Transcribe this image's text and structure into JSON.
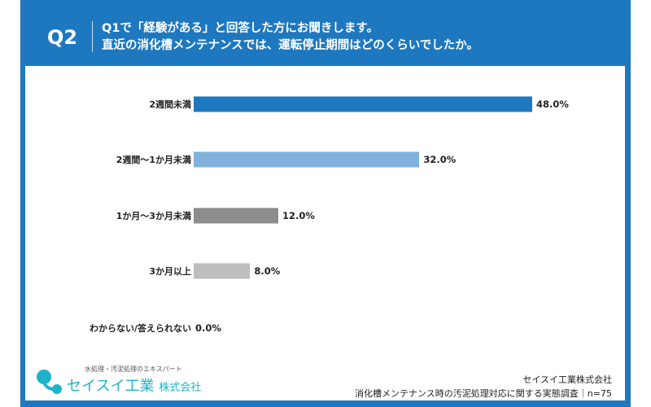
{
  "header": {
    "qnum": "Q2",
    "question_line1": "Q1で「経験がある」と回答した方にお聞きします。",
    "question_line2": "直近の消化槽メンテナンスでは、運転停止期間はどのくらいでしたか。"
  },
  "chart_data": {
    "type": "bar",
    "orientation": "horizontal",
    "categories": [
      "2週間未満",
      "2週間〜1か月未満",
      "1か月〜3か月未満",
      "3か月以上",
      "わからない/答えられない"
    ],
    "values": [
      48.0,
      32.0,
      12.0,
      8.0,
      0.0
    ],
    "value_labels": [
      "48.0%",
      "32.0%",
      "12.0%",
      "8.0%",
      "0.0%"
    ],
    "colors": [
      "#1e78c0",
      "#7fb3de",
      "#8c8c8c",
      "#bdbdbd",
      "#bdbdbd"
    ],
    "xlim": [
      0,
      100
    ],
    "grid": false
  },
  "logo": {
    "tagline": "水処理・汚泥処理のエキスパート",
    "name": "セイスイ工業",
    "suffix": "株式会社"
  },
  "credit": {
    "company": "セイスイ工業株式会社",
    "survey": "消化槽メンテナンス時の汚泥処理対応に関する実態調査｜n=75"
  },
  "colors": {
    "frame": "#1e78c0",
    "logo": "#1eb3c8"
  }
}
